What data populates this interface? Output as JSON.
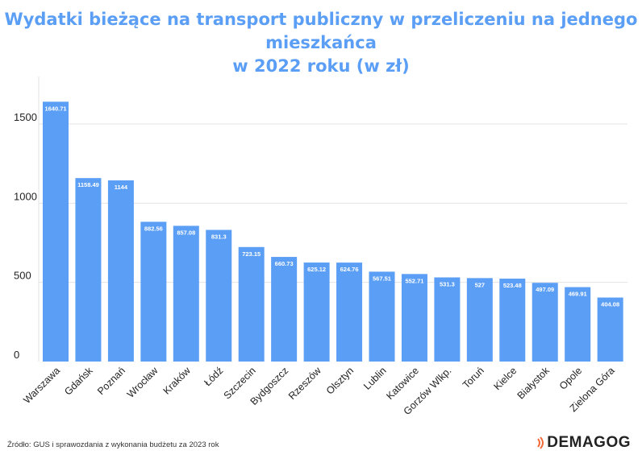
{
  "title_line1": "Wydatki bieżące na transport publiczny w przeliczeniu na jednego mieszkańca",
  "title_line2": "w 2022 roku (w zł)",
  "source": "Źródło: GUS i sprawozdania z wykonania budżetu za 2023 rok",
  "logo_text": "DEMAGOG",
  "colors": {
    "bar": "#5b9ef5",
    "title": "#5b9ef5",
    "grid": "#e3e3e3",
    "axis_text": "#222222"
  },
  "chart_data": {
    "type": "bar",
    "title": "Wydatki bieżące na transport publiczny w przeliczeniu na jednego mieszkańca w 2022 roku (w zł)",
    "categories": [
      "Warszawa",
      "Gdańsk",
      "Poznań",
      "Wrocław",
      "Kraków",
      "Łódź",
      "Szczecin",
      "Bydgoszcz",
      "Rzeszów",
      "Olsztyn",
      "Lublin",
      "Katowice",
      "Gorzów Wlkp.",
      "Toruń",
      "Kielce",
      "Białystok",
      "Opole",
      "Zielona Góra"
    ],
    "values": [
      1640.71,
      1158.49,
      1144,
      882.56,
      857.08,
      831.3,
      723.15,
      660.73,
      625.12,
      624.76,
      567.51,
      552.71,
      531.3,
      527,
      523.48,
      497.09,
      469.91,
      404.08
    ],
    "data_labels": [
      "1640.71",
      "1158.49",
      "1144",
      "882.56",
      "857.08",
      "831.3",
      "723.15",
      "660.73",
      "625.12",
      "624.76",
      "567.51",
      "552.71",
      "531.3",
      "527",
      "523.48",
      "497.09",
      "469.91",
      "404.08"
    ],
    "yticks": [
      0,
      500,
      1000,
      1500
    ],
    "ylim": [
      0,
      1800
    ],
    "grid": true,
    "legend": "none"
  }
}
